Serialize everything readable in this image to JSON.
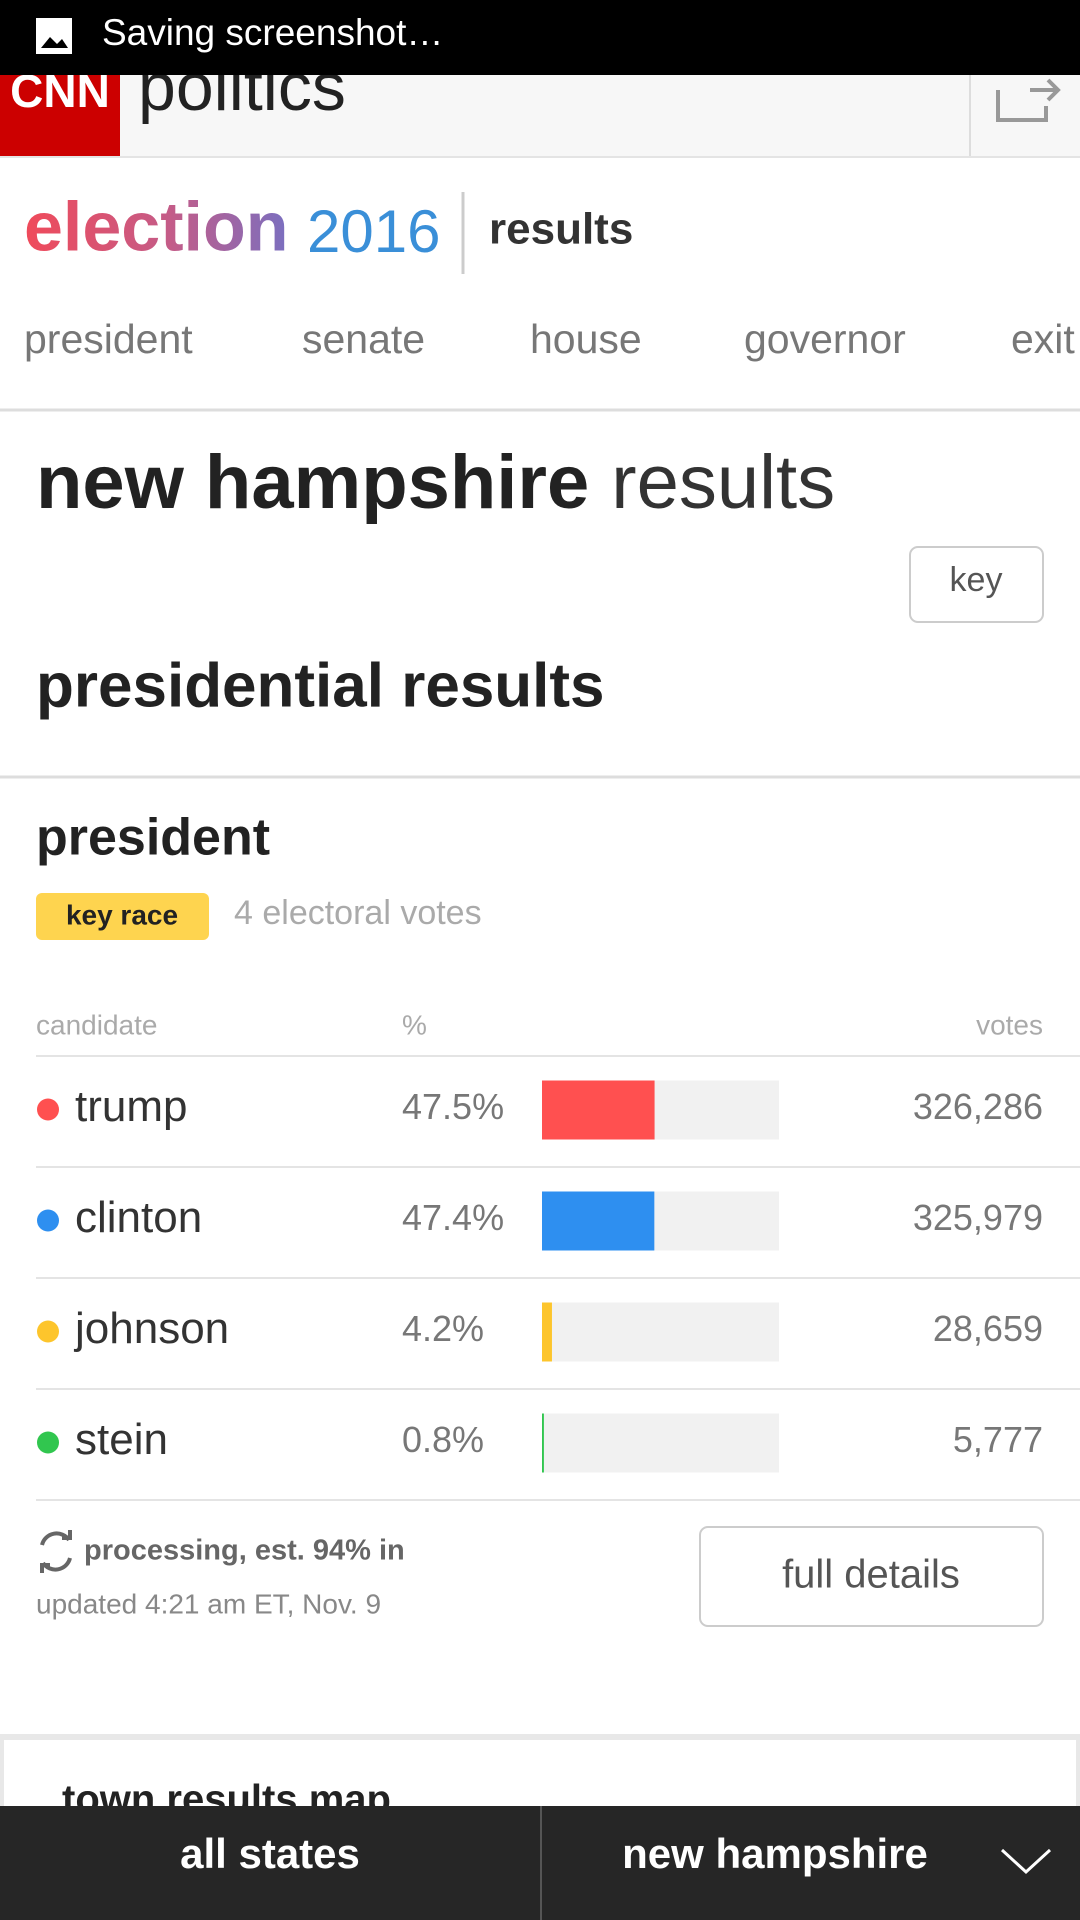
{
  "status_bar": {
    "text": "Saving screenshot…"
  },
  "header": {
    "logo": "CNN",
    "section": "politics"
  },
  "election": {
    "brand": "election",
    "year": "2016",
    "label": "results"
  },
  "nav": [
    "president",
    "senate",
    "house",
    "governor",
    "exit"
  ],
  "page": {
    "title_bold": "new hampshire",
    "title_light": "results",
    "key_button": "key",
    "section_title": "presidential results"
  },
  "race": {
    "title": "president",
    "badge": "key race",
    "electoral_votes": "4 electoral votes",
    "columns": [
      "candidate",
      "%",
      "votes"
    ],
    "rows": [
      {
        "name": "trump",
        "color": "#ff5050",
        "pct": 47.5,
        "pct_label": "47.5%",
        "votes": "326,286"
      },
      {
        "name": "clinton",
        "color": "#2e8ff0",
        "pct": 47.4,
        "pct_label": "47.4%",
        "votes": "325,979"
      },
      {
        "name": "johnson",
        "color": "#fdc52c",
        "pct": 4.2,
        "pct_label": "4.2%",
        "votes": "28,659"
      },
      {
        "name": "stein",
        "color": "#31c64f",
        "pct": 0.8,
        "pct_label": "0.8%",
        "votes": "5,777"
      }
    ],
    "status": "processing, est. 94% in",
    "updated": "updated 4:21 am ET, Nov. 9",
    "details_button": "full details"
  },
  "map": {
    "title": "town results map"
  },
  "bottom_bar": {
    "left": "all states",
    "right": "new hampshire"
  }
}
